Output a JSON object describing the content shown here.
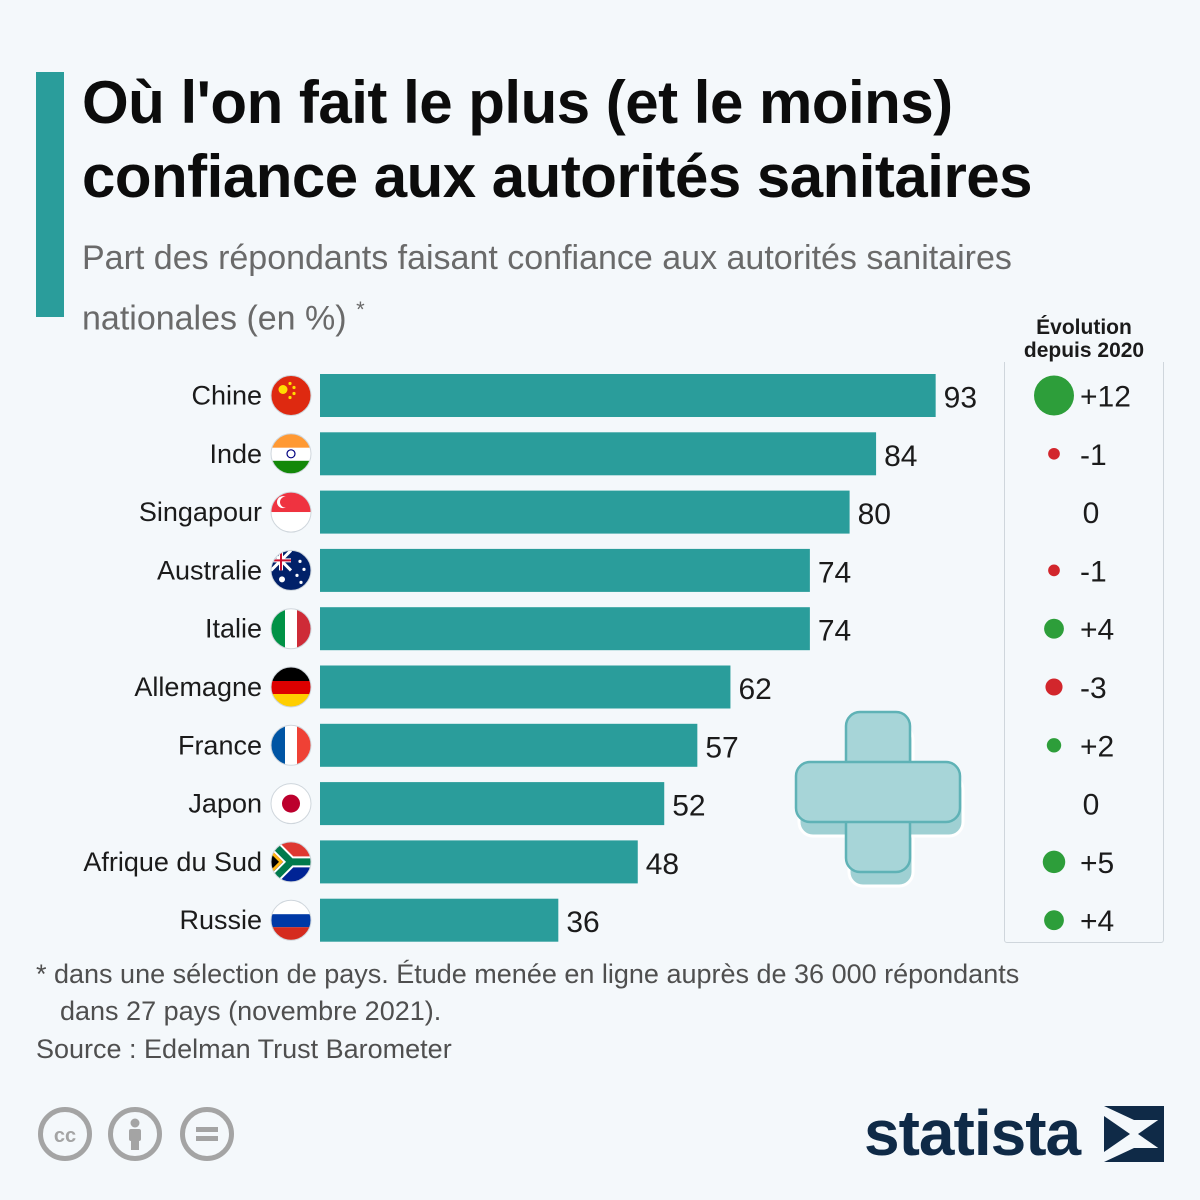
{
  "title": "Où l'on fait le plus (et le moins) confiance aux autorités sanitaires",
  "subtitle": "Part des répondants faisant confiance aux autorités sanitaires nationales (en %)",
  "subtitle_marker": "*",
  "evolution_header": "Évolution depuis 2020",
  "footnote_line1": "* dans une sélection de pays. Étude menée en ligne auprès de 36 000 répondants",
  "footnote_line2": "dans 27 pays (novembre 2021).",
  "source": "Source : Edelman Trust Barometer",
  "brand": "statista",
  "colors": {
    "bar": "#2a9d9b",
    "positive": "#2d9e3a",
    "negative": "#d2262c",
    "accent": "#2a9d9b"
  },
  "icons": [
    "cc-icon",
    "attribution-icon",
    "no-derivatives-icon",
    "medical-cross-icon"
  ],
  "chart_data": {
    "type": "bar",
    "orientation": "horizontal",
    "categories": [
      "Chine",
      "Inde",
      "Singapour",
      "Australie",
      "Italie",
      "Allemagne",
      "France",
      "Japon",
      "Afrique du Sud",
      "Russie"
    ],
    "values": [
      93,
      84,
      80,
      74,
      74,
      62,
      57,
      52,
      48,
      36
    ],
    "evolution_labels": [
      "+12",
      "-1",
      "0",
      "-1",
      "+4",
      "-3",
      "+2",
      "0",
      "+5",
      "+4"
    ],
    "evolution_values": [
      12,
      -1,
      0,
      -1,
      4,
      -3,
      2,
      0,
      5,
      4
    ],
    "xlim": [
      0,
      100
    ],
    "grid": false,
    "legend": "none"
  }
}
